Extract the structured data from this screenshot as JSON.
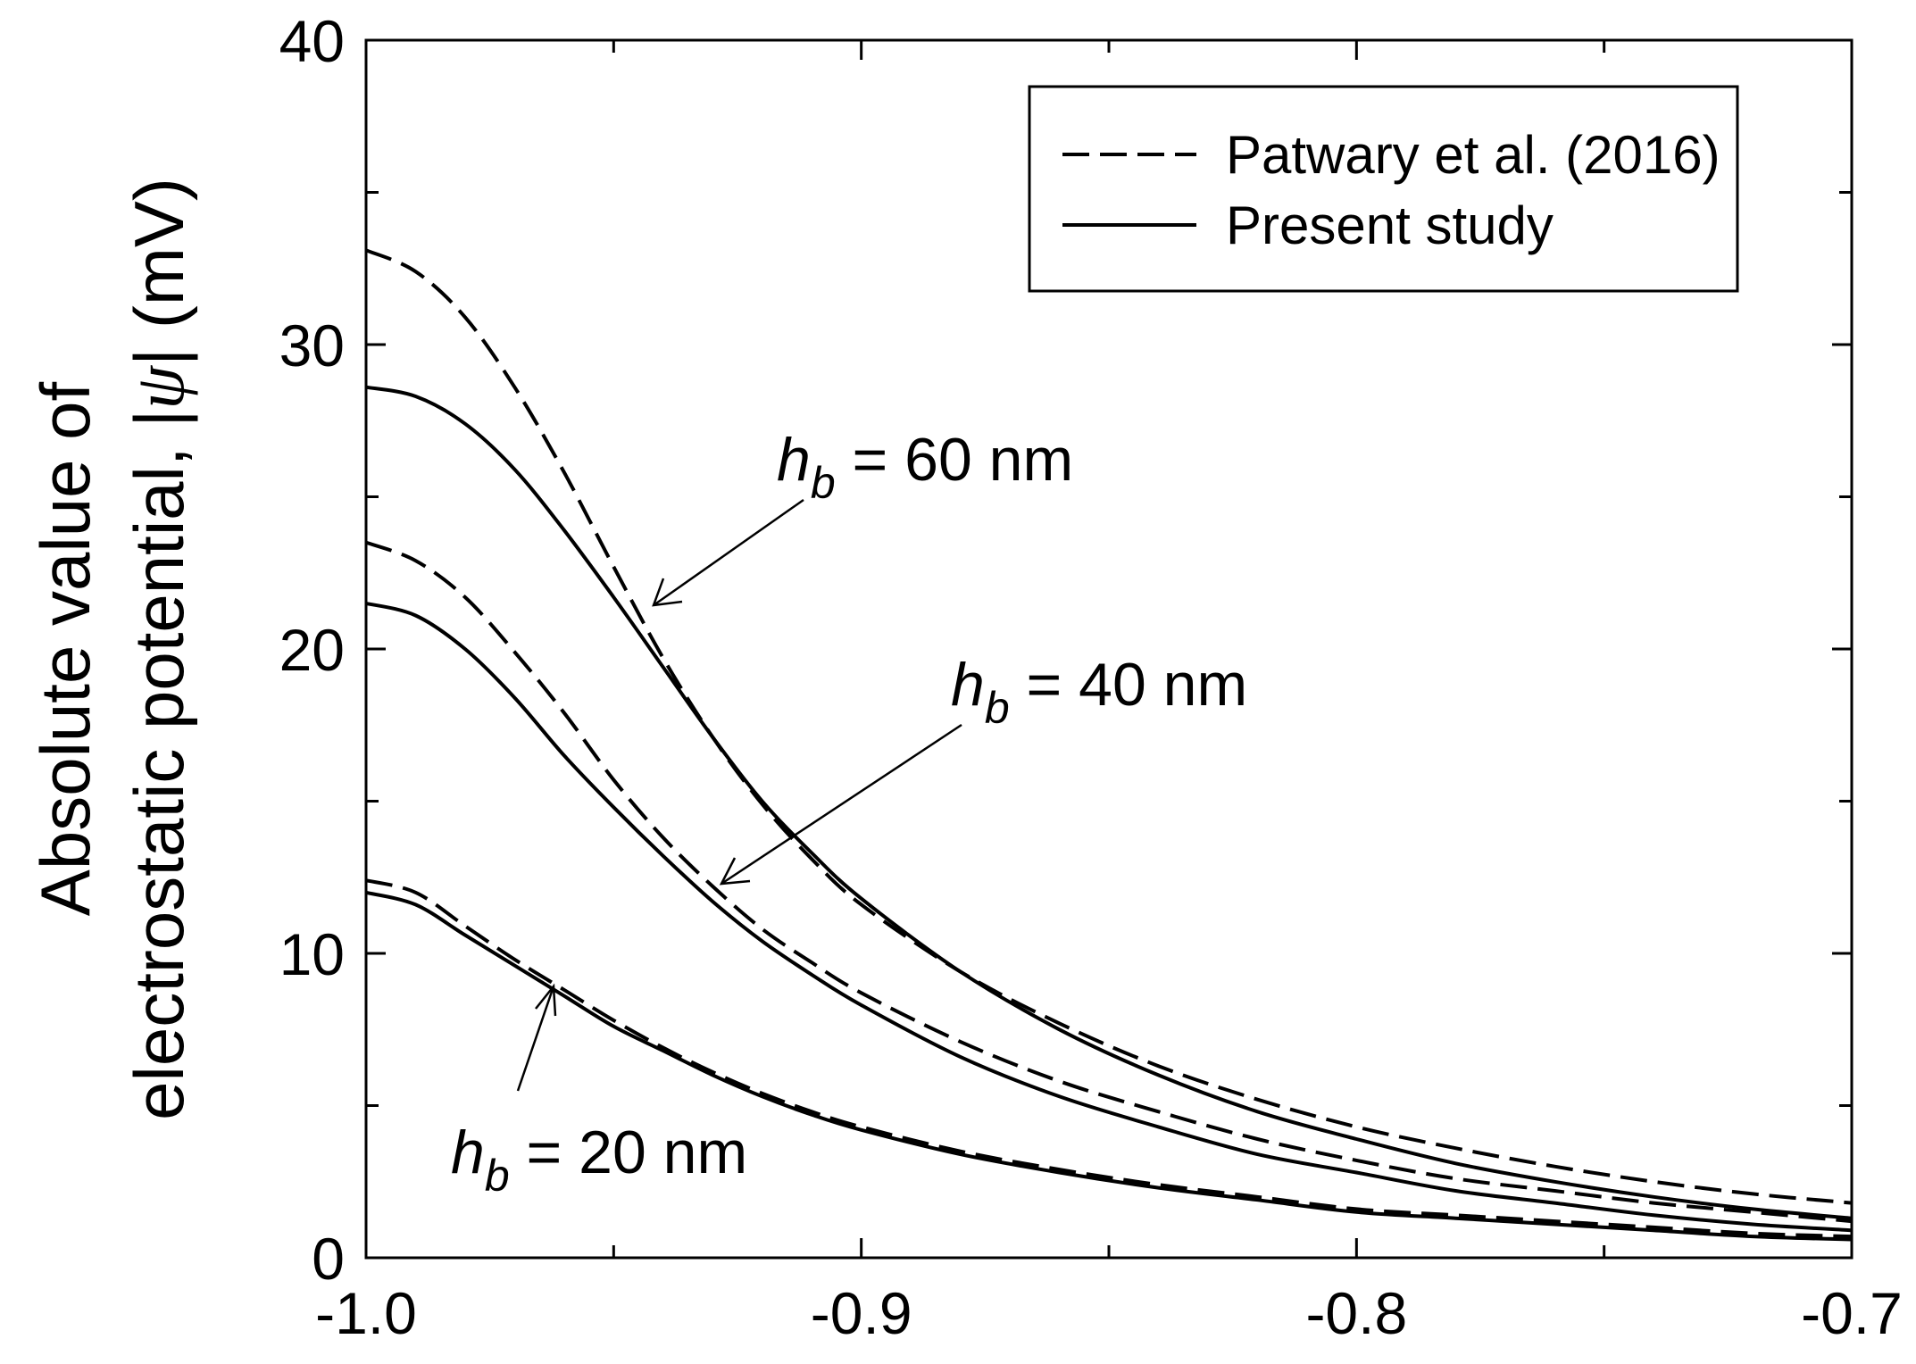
{
  "chart_data": {
    "type": "line",
    "title": "",
    "xlabel": "",
    "ylabel_line1": "Absolute value of",
    "ylabel_line2_prefix": "electrostatic potential, |",
    "ylabel_symbol": "ψ",
    "ylabel_suffix": "| (mV)",
    "xlim": [
      -1.0,
      -0.7
    ],
    "ylim": [
      0,
      40
    ],
    "x_ticks": [
      -1.0,
      -0.9,
      -0.8,
      -0.7
    ],
    "x_tick_labels": [
      "-1.0",
      "-0.9",
      "-0.8",
      "-0.7"
    ],
    "x_minor_ticks": [
      -0.95,
      -0.85,
      -0.75
    ],
    "y_ticks": [
      0,
      10,
      20,
      30,
      40
    ],
    "y_tick_labels": [
      "0",
      "10",
      "20",
      "30",
      "40"
    ],
    "y_minor_ticks": [
      5,
      15,
      25,
      35
    ],
    "legend": [
      {
        "label": "Patwary et al. (2016)",
        "style": "dashed"
      },
      {
        "label": "Present study",
        "style": "solid"
      }
    ],
    "legend_position": "top-right",
    "x": [
      -1.0,
      -0.99,
      -0.98,
      -0.97,
      -0.96,
      -0.95,
      -0.94,
      -0.93,
      -0.92,
      -0.91,
      -0.9,
      -0.88,
      -0.86,
      -0.84,
      -0.82,
      -0.8,
      -0.78,
      -0.76,
      -0.74,
      -0.72,
      -0.7
    ],
    "series": [
      {
        "name": "Patwary et al. (2016) h_b = 60 nm",
        "style": "dashed",
        "values": [
          33.1,
          32.4,
          30.9,
          28.6,
          25.8,
          22.7,
          19.7,
          17.1,
          14.9,
          13.1,
          11.6,
          9.4,
          7.7,
          6.3,
          5.2,
          4.3,
          3.6,
          3.0,
          2.5,
          2.1,
          1.8
        ]
      },
      {
        "name": "Present study h_b = 60 nm",
        "style": "solid",
        "values": [
          28.6,
          28.3,
          27.4,
          25.9,
          23.9,
          21.7,
          19.4,
          17.1,
          15.0,
          13.3,
          11.8,
          9.4,
          7.5,
          6.0,
          4.8,
          3.9,
          3.1,
          2.5,
          2.0,
          1.6,
          1.3
        ]
      },
      {
        "name": "Patwary et al. (2016) h_b = 40 nm",
        "style": "dashed",
        "values": [
          23.5,
          22.9,
          21.7,
          19.9,
          17.9,
          15.7,
          13.8,
          12.2,
          10.8,
          9.7,
          8.7,
          7.1,
          5.8,
          4.8,
          3.9,
          3.2,
          2.6,
          2.2,
          1.8,
          1.5,
          1.2
        ]
      },
      {
        "name": "Present study h_b = 40 nm",
        "style": "solid",
        "values": [
          21.5,
          21.1,
          20.0,
          18.4,
          16.5,
          14.8,
          13.2,
          11.7,
          10.4,
          9.3,
          8.3,
          6.6,
          5.3,
          4.3,
          3.4,
          2.8,
          2.2,
          1.8,
          1.4,
          1.1,
          0.9
        ]
      },
      {
        "name": "Patwary et al. (2016) h_b = 20 nm",
        "style": "dashed",
        "values": [
          12.4,
          12.0,
          10.9,
          9.8,
          8.8,
          7.8,
          6.9,
          6.1,
          5.4,
          4.8,
          4.3,
          3.5,
          2.9,
          2.4,
          2.0,
          1.6,
          1.4,
          1.2,
          1.0,
          0.8,
          0.7
        ]
      },
      {
        "name": "Present study h_b = 20 nm",
        "style": "solid",
        "values": [
          12.0,
          11.6,
          10.6,
          9.6,
          8.6,
          7.6,
          6.8,
          6.0,
          5.3,
          4.7,
          4.2,
          3.4,
          2.8,
          2.3,
          1.9,
          1.5,
          1.3,
          1.1,
          0.9,
          0.7,
          0.6
        ]
      }
    ],
    "annotations": [
      {
        "symbol": "h",
        "subscript": "b",
        "rest": " = 60 nm",
        "arrow_to_x": -0.944,
        "arrow_to_y": 21.3
      },
      {
        "symbol": "h",
        "subscript": "b",
        "rest": " = 40 nm",
        "arrow_to_x": -0.93,
        "arrow_to_y": 12.2
      },
      {
        "symbol": "h",
        "subscript": "b",
        "rest": " = 20 nm",
        "arrow_to_x": -0.962,
        "arrow_to_y": 8.9
      }
    ]
  }
}
